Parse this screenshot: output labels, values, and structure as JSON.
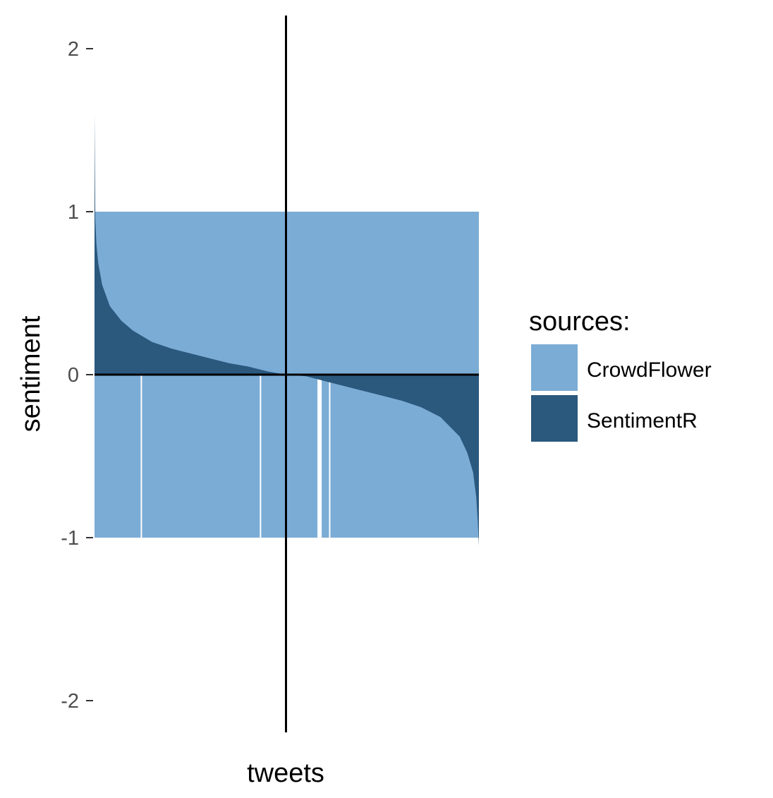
{
  "chart_data": {
    "type": "area",
    "xlabel": "tweets",
    "ylabel": "sentiment",
    "ylim": [
      -2.2,
      2.2
    ],
    "yticks": [
      2,
      1,
      0,
      -1,
      -2
    ],
    "ytick_labels": [
      "2",
      "1",
      "0",
      "-1",
      "-2"
    ],
    "grid": false,
    "reference_lines": {
      "x_center": true,
      "y": 0
    },
    "legend": {
      "title": "sources:",
      "position": "right"
    },
    "n_tweets": 1000,
    "series": [
      {
        "name": "CrowdFlower",
        "color": "#7bacd5",
        "description_values": "each tweet labelled +1 or -1",
        "x": [
          0,
          1000
        ],
        "upper": 1,
        "lower": -1,
        "gaps_below_zero_at": [
          120,
          430,
          580,
          610
        ]
      },
      {
        "name": "SentimentR",
        "color": "#2b587d",
        "x": [
          0,
          2,
          5,
          10,
          20,
          40,
          70,
          100,
          150,
          200,
          250,
          300,
          350,
          400,
          450,
          500,
          550,
          600,
          650,
          700,
          750,
          800,
          850,
          900,
          950,
          970,
          985,
          993,
          997,
          1000
        ],
        "y": [
          1.6,
          0.95,
          0.8,
          0.68,
          0.55,
          0.42,
          0.33,
          0.27,
          0.2,
          0.16,
          0.13,
          0.1,
          0.07,
          0.05,
          0.02,
          0.0,
          -0.01,
          -0.04,
          -0.07,
          -0.1,
          -0.13,
          -0.16,
          -0.2,
          -0.26,
          -0.38,
          -0.48,
          -0.6,
          -0.75,
          -0.9,
          -1.05
        ]
      }
    ]
  }
}
